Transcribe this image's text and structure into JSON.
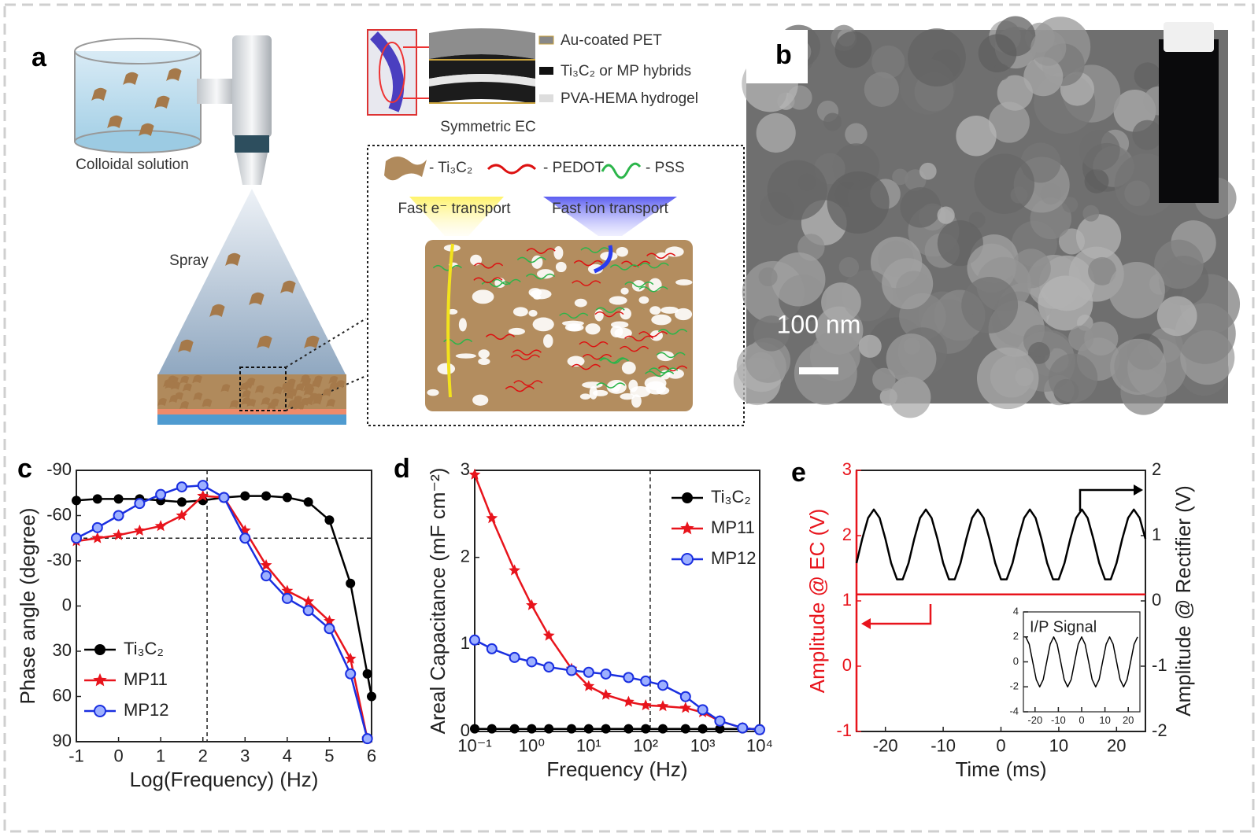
{
  "panel_labels": [
    "a",
    "b",
    "c",
    "d",
    "e"
  ],
  "diagram_a": {
    "colloidal_solution": "Colloidal solution",
    "spray": "Spray",
    "layers": [
      "Au-coated PET",
      "Ti₃C₂ or MP hybrids",
      "PVA-HEMA hydrogel"
    ],
    "device": "Symmetric EC",
    "legend": [
      "- Ti₃C₂",
      "- PEDOT",
      "- PSS"
    ],
    "transport": [
      "Fast e⁻ transport",
      "Fast ion transport"
    ]
  },
  "image_b": {
    "scale_bar": "100 nm"
  },
  "chart_data": [
    {
      "type": "line",
      "x_label": "Log(Frequency) (Hz)",
      "y_label": "Phase angle (degree)",
      "xlim": [
        -1,
        6
      ],
      "xticks": [
        -1,
        0,
        1,
        2,
        3,
        4,
        5,
        6
      ],
      "ylim": [
        -90,
        90
      ],
      "y_inverted": true,
      "yticks": [
        -90,
        -60,
        -30,
        0,
        30,
        60,
        90
      ],
      "vlines": [
        2.1
      ],
      "hlines": [
        -45
      ],
      "legend": "lower left",
      "x": [
        -1,
        -0.5,
        0,
        0.5,
        1,
        1.5,
        2,
        2.5,
        3,
        3.5,
        4,
        4.5,
        5,
        5.5,
        5.9,
        6
      ],
      "series": [
        {
          "name": "Ti₃C₂",
          "color": "#000000",
          "marker": "circle",
          "values": [
            -70,
            -71,
            -71,
            -71,
            -70,
            -69,
            -70,
            -72,
            -73,
            -73,
            -72,
            -69,
            -57,
            -15,
            45,
            60
          ]
        },
        {
          "name": "MP11",
          "color": "#e8141c",
          "marker": "star",
          "values": [
            -43,
            -45,
            -47,
            -50,
            -53,
            -60,
            -73,
            -72,
            -50,
            -27,
            -10,
            -3,
            10,
            35,
            88,
            null
          ]
        },
        {
          "name": "MP12",
          "color": "#1a2fe0",
          "marker": "circle-open",
          "values": [
            -45,
            -52,
            -60,
            -68,
            -74,
            -79,
            -80,
            -72,
            -45,
            -20,
            -5,
            3,
            15,
            45,
            88,
            null
          ]
        }
      ]
    },
    {
      "type": "line",
      "x_label": "Frequency (Hz)",
      "y_label": "Areal Capacitance (mF cm⁻²)",
      "log": true,
      "xlim": [
        0.1,
        10000
      ],
      "xticks": [
        {
          "value": 0.1,
          "label": "10⁻¹"
        },
        {
          "value": 1,
          "label": "10⁰"
        },
        {
          "value": 10,
          "label": "10¹"
        },
        {
          "value": 100,
          "label": "10²"
        },
        {
          "value": 1000,
          "label": "10³"
        },
        {
          "value": 10000,
          "label": "10⁴"
        }
      ],
      "ylim": [
        0,
        3
      ],
      "yticks": [
        0,
        1,
        2,
        3
      ],
      "vlines": [
        120
      ],
      "legend": "upper right",
      "x": [
        0.1,
        0.2,
        0.5,
        1,
        2,
        5,
        10,
        20,
        50,
        100,
        200,
        500,
        1000,
        2000,
        5000,
        10000
      ],
      "series": [
        {
          "name": "Ti₃C₂",
          "color": "#000000",
          "marker": "circle",
          "values": [
            0.03,
            0.03,
            0.03,
            0.03,
            0.03,
            0.03,
            0.03,
            0.03,
            0.03,
            0.03,
            0.03,
            0.03,
            0.03,
            0.03,
            0.03,
            0.03
          ]
        },
        {
          "name": "MP11",
          "color": "#e8141c",
          "marker": "star",
          "values": [
            2.95,
            2.45,
            1.85,
            1.45,
            1.1,
            0.72,
            0.52,
            0.42,
            0.34,
            0.3,
            0.29,
            0.27,
            0.22,
            0.12,
            0.04,
            0.02
          ]
        },
        {
          "name": "MP12",
          "color": "#1a2fe0",
          "marker": "circle-open",
          "values": [
            1.05,
            0.95,
            0.85,
            0.8,
            0.74,
            0.7,
            0.68,
            0.66,
            0.62,
            0.58,
            0.53,
            0.4,
            0.25,
            0.12,
            0.04,
            0.02
          ]
        }
      ]
    },
    {
      "type": "line",
      "x_label": "Time (ms)",
      "y_label": "Amplitude @ EC (V)",
      "y2_label": "Amplitude @ Rectifier (V)",
      "y_color": "#e8141c",
      "xlim": [
        -25,
        25
      ],
      "xticks": [
        -20,
        -10,
        0,
        10,
        20
      ],
      "ylim": [
        -1,
        3
      ],
      "yticks": [
        -1,
        0,
        1,
        2,
        3
      ],
      "y2lim": [
        -2,
        2
      ],
      "y2ticks": [
        -2,
        -1,
        0,
        1,
        2
      ],
      "x": [
        -25,
        -24,
        -23,
        -22,
        -21,
        -20,
        -19,
        -18,
        -17,
        -16,
        -15,
        -14,
        -13,
        -12,
        -11,
        -10,
        -9,
        -8,
        -7,
        -6,
        -5,
        -4,
        -3,
        -2,
        -1,
        0,
        1,
        2,
        3,
        4,
        5,
        6,
        7,
        8,
        9,
        10,
        11,
        12,
        13,
        14,
        15,
        16,
        17,
        18,
        19,
        20,
        21,
        22,
        23,
        24,
        25
      ],
      "series": [
        {
          "color": "#000000",
          "axis": "y2",
          "values": [
            0.58,
            0.95,
            1.27,
            1.4,
            1.27,
            0.95,
            0.58,
            0.33,
            0.33,
            0.58,
            0.95,
            1.27,
            1.4,
            1.27,
            0.95,
            0.58,
            0.33,
            0.33,
            0.58,
            0.95,
            1.27,
            1.4,
            1.27,
            0.95,
            0.58,
            0.33,
            0.33,
            0.58,
            0.95,
            1.27,
            1.4,
            1.27,
            0.95,
            0.58,
            0.33,
            0.33,
            0.58,
            0.95,
            1.27,
            1.4,
            1.27,
            0.95,
            0.58,
            0.33,
            0.33,
            0.58,
            0.95,
            1.27,
            1.4,
            1.27,
            0.95
          ]
        },
        {
          "color": "#e8141c",
          "values": [
            1.1,
            1.1,
            1.1,
            1.1,
            1.1,
            1.1,
            1.1,
            1.1,
            1.1,
            1.1,
            1.1,
            1.1,
            1.1,
            1.1,
            1.1,
            1.1,
            1.1,
            1.1,
            1.1,
            1.1,
            1.1,
            1.1,
            1.1,
            1.1,
            1.1,
            1.1,
            1.1,
            1.1,
            1.1,
            1.1,
            1.1,
            1.1,
            1.1,
            1.1,
            1.1,
            1.1,
            1.1,
            1.1,
            1.1,
            1.1,
            1.1,
            1.1,
            1.1,
            1.1,
            1.1,
            1.1,
            1.1,
            1.1,
            1.1,
            1.1,
            1.1
          ]
        }
      ]
    },
    {
      "type": "line",
      "title": "I/P Signal",
      "xlim": [
        -25,
        25
      ],
      "xticks": [
        -20,
        -10,
        0,
        10,
        20
      ],
      "ylim": [
        -4,
        4
      ],
      "yticks": [
        -4,
        -2,
        0,
        2,
        4
      ],
      "x": [
        -24,
        -22.5,
        -21,
        -19.5,
        -18,
        -16.5,
        -15,
        -13.5,
        -12,
        -10.5,
        -9,
        -7.5,
        -6,
        -4.5,
        -3,
        -1.5,
        0,
        1.5,
        3,
        4.5,
        6,
        7.5,
        9,
        10.5,
        12,
        13.5,
        15,
        16.5,
        18,
        19.5,
        21,
        22.5,
        24
      ],
      "series": [
        {
          "color": "#000000",
          "values": [
            2,
            1.41,
            0,
            -1.41,
            -2,
            -1.41,
            0,
            1.41,
            2,
            1.41,
            0,
            -1.41,
            -2,
            -1.41,
            0,
            1.41,
            2,
            1.41,
            0,
            -1.41,
            -2,
            -1.41,
            0,
            1.41,
            2,
            1.41,
            0,
            -1.41,
            -2,
            -1.41,
            0,
            1.41,
            2
          ]
        }
      ]
    }
  ]
}
